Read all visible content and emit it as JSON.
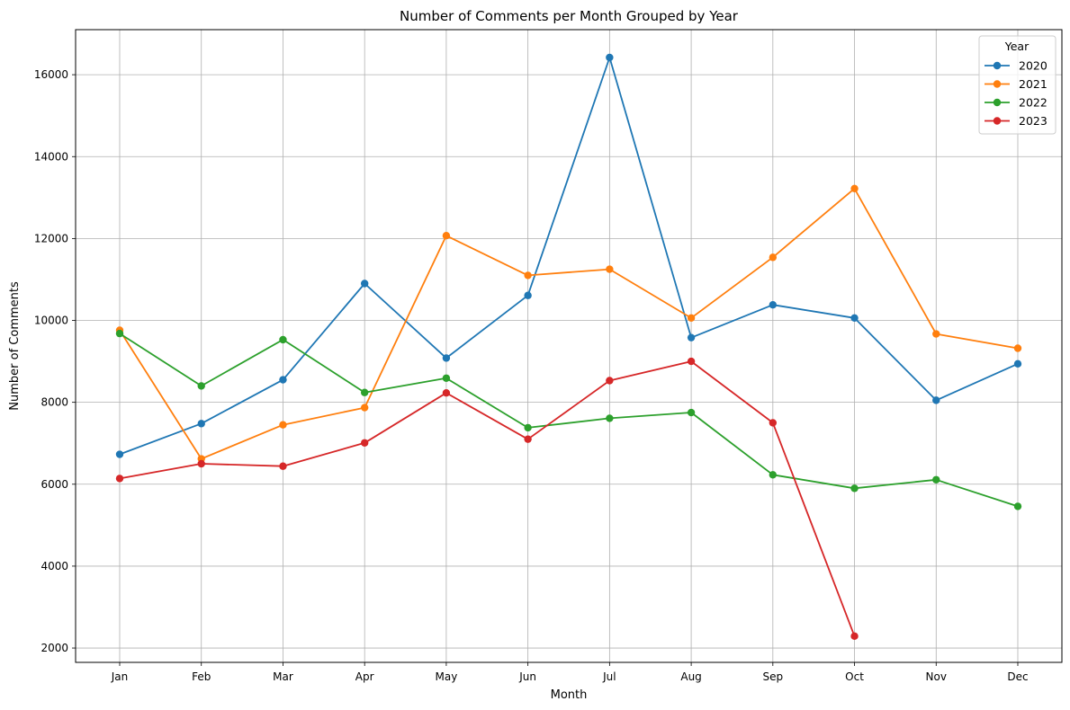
{
  "chart_data": {
    "type": "line",
    "title": "Number of Comments per Month Grouped by Year",
    "xlabel": "Month",
    "ylabel": "Number of Comments",
    "categories": [
      "Jan",
      "Feb",
      "Mar",
      "Apr",
      "May",
      "Jun",
      "Jul",
      "Aug",
      "Sep",
      "Oct",
      "Nov",
      "Dec"
    ],
    "ylim": [
      1650,
      17100
    ],
    "yticks": [
      2000,
      4000,
      6000,
      8000,
      10000,
      12000,
      14000,
      16000
    ],
    "grid": true,
    "legend": {
      "title": "Year",
      "placement": "top-right"
    },
    "series": [
      {
        "name": "2020",
        "color": "#1f77b4",
        "values": [
          6730,
          7480,
          8550,
          10900,
          9080,
          10610,
          16420,
          9580,
          10380,
          10060,
          8050,
          8940
        ]
      },
      {
        "name": "2021",
        "color": "#ff7f0e",
        "values": [
          9760,
          6620,
          7450,
          7870,
          12070,
          11100,
          11250,
          10060,
          11540,
          13220,
          9670,
          9320
        ]
      },
      {
        "name": "2022",
        "color": "#2ca02c",
        "values": [
          9680,
          8400,
          9530,
          8240,
          8590,
          7380,
          7610,
          7750,
          6230,
          5900,
          6110,
          5460
        ]
      },
      {
        "name": "2023",
        "color": "#d62728",
        "values": [
          6140,
          6500,
          6440,
          7010,
          8230,
          7100,
          8530,
          9000,
          7500,
          2290,
          null,
          null
        ]
      }
    ]
  }
}
